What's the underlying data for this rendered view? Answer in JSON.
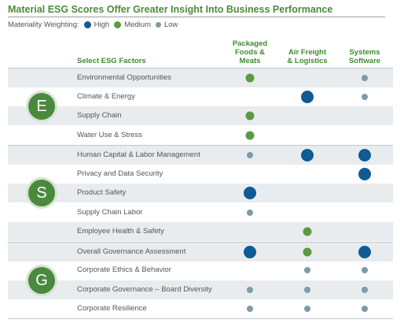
{
  "title": "Material ESG Scores Offer Greater Insight Into Business Performance",
  "legend": {
    "label": "Materiality Weighting:",
    "items": [
      {
        "label": "High",
        "color": "#0f5c94"
      },
      {
        "label": "Medium",
        "color": "#5b9a42"
      },
      {
        "label": "Low",
        "color": "#7d9aa8"
      }
    ]
  },
  "table": {
    "factor_header": "Select ESG Factors",
    "columns": [
      [
        "Packaged",
        "Foods &",
        "Meats"
      ],
      [
        "Air Freight",
        "& Logistics"
      ],
      [
        "Systems",
        "Software"
      ]
    ],
    "groups": [
      {
        "letter": "E",
        "rows": [
          {
            "label": "Environmental Opportunities",
            "weights": [
              "medium",
              "",
              "low"
            ]
          },
          {
            "label": "Climate & Energy",
            "weights": [
              "",
              "high",
              "low"
            ]
          },
          {
            "label": "Supply Chain",
            "weights": [
              "medium",
              "",
              ""
            ]
          },
          {
            "label": "Water Use & Stress",
            "weights": [
              "medium",
              "",
              ""
            ]
          }
        ]
      },
      {
        "letter": "S",
        "rows": [
          {
            "label": "Human Capital & Labor Management",
            "weights": [
              "low",
              "high",
              "high"
            ]
          },
          {
            "label": "Privacy and Data Security",
            "weights": [
              "",
              "",
              "high"
            ]
          },
          {
            "label": "Product Safety",
            "weights": [
              "high",
              "",
              ""
            ]
          },
          {
            "label": "Supply Chain Labor",
            "weights": [
              "low",
              "",
              ""
            ]
          },
          {
            "label": "Employee Health & Safety",
            "weights": [
              "",
              "medium",
              ""
            ]
          }
        ]
      },
      {
        "letter": "G",
        "rows": [
          {
            "label": "Overall Governance Assessment",
            "weights": [
              "high",
              "medium",
              "high"
            ]
          },
          {
            "label": "Corporate Ethics & Behavior",
            "weights": [
              "",
              "low",
              "low"
            ]
          },
          {
            "label": "Corporate Governance – Board Diversity",
            "weights": [
              "low",
              "low",
              "low"
            ]
          },
          {
            "label": "Corporate Resilience",
            "weights": [
              "low",
              "low",
              "low"
            ]
          }
        ]
      }
    ]
  }
}
